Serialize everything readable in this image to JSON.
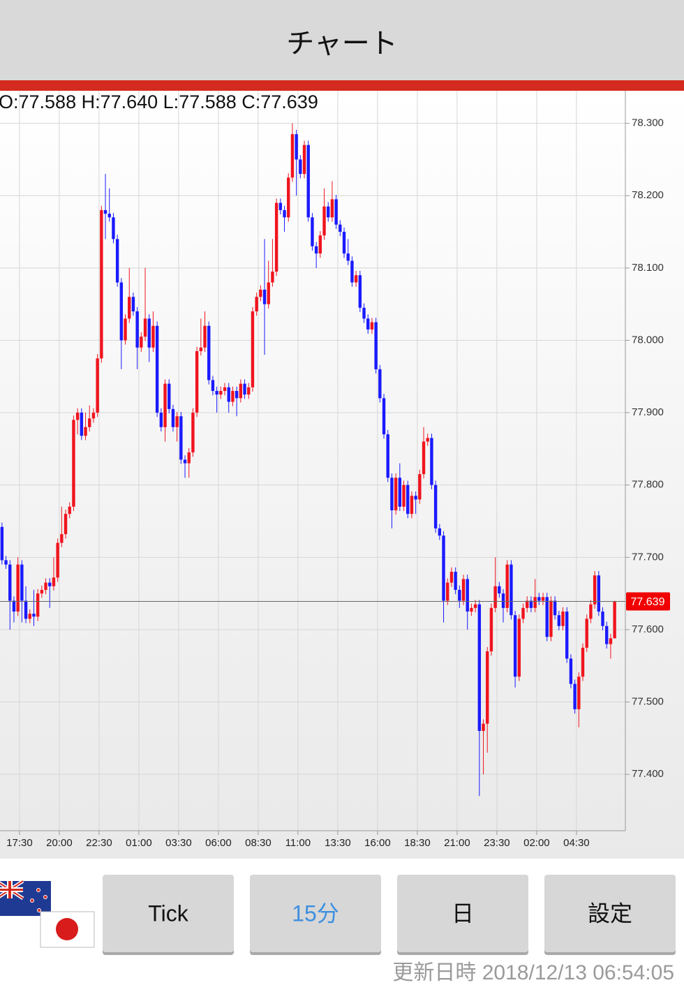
{
  "header": {
    "title": "チャート"
  },
  "chart_data": {
    "type": "candlestick",
    "annotation": "O:77.588 H:77.640 L:77.588 C:77.639",
    "up_color": "#f0141e",
    "down_color": "#1a1aff",
    "grid": true,
    "current_price_line": true,
    "ylim": [
      77.322,
      78.345
    ],
    "yticks": [
      {
        "value": 77.4,
        "label": "77.400"
      },
      {
        "value": 77.5,
        "label": "77.500"
      },
      {
        "value": 77.6,
        "label": "77.600"
      },
      {
        "value": 77.7,
        "label": "77.700"
      },
      {
        "value": 77.8,
        "label": "77.800"
      },
      {
        "value": 77.9,
        "label": "77.900"
      },
      {
        "value": 78.0,
        "label": "78.000"
      },
      {
        "value": 78.1,
        "label": "78.100"
      },
      {
        "value": 78.2,
        "label": "78.200"
      },
      {
        "value": 78.3,
        "label": "78.300"
      }
    ],
    "xlim": [
      -0.5,
      156.7
    ],
    "xticks": [
      {
        "value": 4.4,
        "label": "17:30"
      },
      {
        "value": 14.4,
        "label": "20:00"
      },
      {
        "value": 24.4,
        "label": "22:30"
      },
      {
        "value": 34.4,
        "label": "01:00"
      },
      {
        "value": 44.4,
        "label": "03:30"
      },
      {
        "value": 54.4,
        "label": "06:00"
      },
      {
        "value": 64.4,
        "label": "08:30"
      },
      {
        "value": 74.4,
        "label": "11:00"
      },
      {
        "value": 84.4,
        "label": "13:30"
      },
      {
        "value": 94.4,
        "label": "16:00"
      },
      {
        "value": 104.4,
        "label": "18:30"
      },
      {
        "value": 114.4,
        "label": "21:00"
      },
      {
        "value": 124.4,
        "label": "23:30"
      },
      {
        "value": 134.4,
        "label": "02:00"
      },
      {
        "value": 144.4,
        "label": "04:30"
      }
    ],
    "candles": {
      "open": [
        77.742,
        77.696,
        77.69,
        77.64,
        77.625,
        77.69,
        77.64,
        77.615,
        77.622,
        77.618,
        77.65,
        77.655,
        77.665,
        77.66,
        77.672,
        77.72,
        77.732,
        77.76,
        77.77,
        77.89,
        77.9,
        77.868,
        77.88,
        77.892,
        77.9,
        77.975,
        78.18,
        78.175,
        78.17,
        78.14,
        78.08,
        78.0,
        78.03,
        78.06,
        78.04,
        77.99,
        78.005,
        78.03,
        77.99,
        78.02,
        77.9,
        77.88,
        77.94,
        77.905,
        77.88,
        77.895,
        77.835,
        77.83,
        77.845,
        77.9,
        77.985,
        77.99,
        78.02,
        77.945,
        77.93,
        77.925,
        77.93,
        77.935,
        77.915,
        77.93,
        77.92,
        77.94,
        77.925,
        77.935,
        78.04,
        78.06,
        78.07,
        78.05,
        78.08,
        78.095,
        78.19,
        78.18,
        78.17,
        78.225,
        78.285,
        78.25,
        78.23,
        78.27,
        78.17,
        78.13,
        78.12,
        78.145,
        78.185,
        78.17,
        78.195,
        78.16,
        78.15,
        78.12,
        78.11,
        78.08,
        78.09,
        78.045,
        78.03,
        78.015,
        78.025,
        77.96,
        77.92,
        77.87,
        77.81,
        77.765,
        77.81,
        77.77,
        77.8,
        77.76,
        77.785,
        77.78,
        77.815,
        77.86,
        77.865,
        77.8,
        77.74,
        77.73,
        77.64,
        77.665,
        77.68,
        77.655,
        77.64,
        77.67,
        77.625,
        77.63,
        77.635,
        77.46,
        77.47,
        77.57,
        77.63,
        77.66,
        77.65,
        77.63,
        77.69,
        77.62,
        77.535,
        77.615,
        77.63,
        77.64,
        77.63,
        77.645,
        77.64,
        77.645,
        77.59,
        77.64,
        77.62,
        77.605,
        77.625,
        77.56,
        77.525,
        77.49,
        77.535,
        77.575,
        77.615,
        77.635,
        77.675,
        77.625,
        77.605,
        77.58,
        77.588
      ],
      "high": [
        77.748,
        77.702,
        77.696,
        77.646,
        77.7,
        77.696,
        77.66,
        77.628,
        77.655,
        77.656,
        77.661,
        77.671,
        77.671,
        77.7,
        77.726,
        77.77,
        77.766,
        77.776,
        77.896,
        77.906,
        77.906,
        77.9,
        77.91,
        77.906,
        77.981,
        78.186,
        78.23,
        78.21,
        78.176,
        78.146,
        78.086,
        78.036,
        78.1,
        78.066,
        78.046,
        78.011,
        78.1,
        78.036,
        78.04,
        78.026,
        77.906,
        77.946,
        77.946,
        77.911,
        77.901,
        77.901,
        77.841,
        77.851,
        77.906,
        77.991,
        78.03,
        78.04,
        78.026,
        77.951,
        77.936,
        77.936,
        77.941,
        77.941,
        77.936,
        77.936,
        77.946,
        77.946,
        77.941,
        78.046,
        78.066,
        78.076,
        78.14,
        78.11,
        78.14,
        78.196,
        78.196,
        78.186,
        78.231,
        78.3,
        78.291,
        78.256,
        78.276,
        78.276,
        78.176,
        78.136,
        78.151,
        78.21,
        78.191,
        78.22,
        78.201,
        78.166,
        78.156,
        78.14,
        78.116,
        78.096,
        78.096,
        78.051,
        78.036,
        78.031,
        78.031,
        77.966,
        77.926,
        77.876,
        77.816,
        77.816,
        77.83,
        77.806,
        77.806,
        77.791,
        77.791,
        77.821,
        77.88,
        77.871,
        77.871,
        77.806,
        77.746,
        77.736,
        77.671,
        77.686,
        77.686,
        77.661,
        77.676,
        77.676,
        77.636,
        77.641,
        77.641,
        77.476,
        77.576,
        77.636,
        77.7,
        77.666,
        77.656,
        77.696,
        77.696,
        77.626,
        77.621,
        77.636,
        77.646,
        77.646,
        77.67,
        77.651,
        77.651,
        77.651,
        77.646,
        77.646,
        77.626,
        77.631,
        77.631,
        77.566,
        77.531,
        77.541,
        77.581,
        77.621,
        77.641,
        77.681,
        77.681,
        77.631,
        77.611,
        77.594,
        77.64
      ],
      "low": [
        77.69,
        77.684,
        77.6,
        77.61,
        77.619,
        77.61,
        77.609,
        77.609,
        77.605,
        77.612,
        77.644,
        77.649,
        77.63,
        77.654,
        77.666,
        77.714,
        77.726,
        77.754,
        77.764,
        77.87,
        77.862,
        77.862,
        77.874,
        77.886,
        77.894,
        77.969,
        78.14,
        78.164,
        78.134,
        78.074,
        77.96,
        77.994,
        78.024,
        78.034,
        77.96,
        77.984,
        77.999,
        77.97,
        77.984,
        77.894,
        77.874,
        77.86,
        77.899,
        77.874,
        77.86,
        77.829,
        77.81,
        77.81,
        77.839,
        77.894,
        77.979,
        77.984,
        77.939,
        77.924,
        77.9,
        77.919,
        77.924,
        77.9,
        77.909,
        77.895,
        77.914,
        77.919,
        77.919,
        77.929,
        78.034,
        78.054,
        77.98,
        78.044,
        78.074,
        78.089,
        78.174,
        78.15,
        78.164,
        78.219,
        78.2,
        78.224,
        78.224,
        78.164,
        78.124,
        78.1,
        78.114,
        78.139,
        78.164,
        78.164,
        78.154,
        78.144,
        78.114,
        78.104,
        78.074,
        78.074,
        78.039,
        78.024,
        78.009,
        78.009,
        77.954,
        77.914,
        77.864,
        77.804,
        77.74,
        77.759,
        77.764,
        77.764,
        77.754,
        77.754,
        77.76,
        77.774,
        77.809,
        77.854,
        77.794,
        77.734,
        77.724,
        77.61,
        77.634,
        77.659,
        77.649,
        77.63,
        77.634,
        77.6,
        77.619,
        77.624,
        77.37,
        77.4,
        77.43,
        77.564,
        77.624,
        77.644,
        77.61,
        77.624,
        77.614,
        77.52,
        77.529,
        77.609,
        77.624,
        77.624,
        77.624,
        77.634,
        77.634,
        77.584,
        77.584,
        77.614,
        77.599,
        77.599,
        77.554,
        77.519,
        77.484,
        77.465,
        77.529,
        77.569,
        77.609,
        77.629,
        77.619,
        77.599,
        77.574,
        77.56,
        77.588
      ],
      "close": [
        77.696,
        77.69,
        77.64,
        77.625,
        77.69,
        77.64,
        77.615,
        77.622,
        77.618,
        77.65,
        77.655,
        77.665,
        77.66,
        77.672,
        77.72,
        77.732,
        77.76,
        77.77,
        77.89,
        77.9,
        77.868,
        77.88,
        77.892,
        77.9,
        77.975,
        78.18,
        78.175,
        78.17,
        78.14,
        78.08,
        78.0,
        78.03,
        78.06,
        78.04,
        77.99,
        78.005,
        78.03,
        77.99,
        78.02,
        77.9,
        77.88,
        77.94,
        77.905,
        77.88,
        77.895,
        77.835,
        77.83,
        77.845,
        77.9,
        77.985,
        77.99,
        78.02,
        77.945,
        77.93,
        77.925,
        77.93,
        77.935,
        77.915,
        77.93,
        77.92,
        77.94,
        77.925,
        77.935,
        78.04,
        78.06,
        78.07,
        78.05,
        78.08,
        78.095,
        78.19,
        78.18,
        78.17,
        78.225,
        78.285,
        78.25,
        78.23,
        78.27,
        78.17,
        78.13,
        78.12,
        78.145,
        78.185,
        78.17,
        78.195,
        78.16,
        78.15,
        78.12,
        78.11,
        78.08,
        78.09,
        78.045,
        78.03,
        78.015,
        78.025,
        77.96,
        77.92,
        77.87,
        77.81,
        77.765,
        77.81,
        77.77,
        77.8,
        77.76,
        77.785,
        77.78,
        77.815,
        77.86,
        77.865,
        77.8,
        77.74,
        77.73,
        77.64,
        77.665,
        77.68,
        77.655,
        77.64,
        77.67,
        77.625,
        77.63,
        77.635,
        77.46,
        77.47,
        77.57,
        77.63,
        77.66,
        77.65,
        77.63,
        77.69,
        77.62,
        77.535,
        77.615,
        77.63,
        77.64,
        77.63,
        77.645,
        77.64,
        77.645,
        77.59,
        77.64,
        77.62,
        77.605,
        77.625,
        77.56,
        77.525,
        77.49,
        77.535,
        77.575,
        77.615,
        77.635,
        77.675,
        77.625,
        77.605,
        77.58,
        77.588,
        77.639
      ]
    }
  },
  "buttons": [
    {
      "label": "Tick",
      "selected": false
    },
    {
      "label": "15分",
      "selected": true
    },
    {
      "label": "日",
      "selected": false
    },
    {
      "label": "設定",
      "selected": false
    }
  ],
  "footer": {
    "updated": "更新日時 2018/12/13 06:54:05"
  }
}
